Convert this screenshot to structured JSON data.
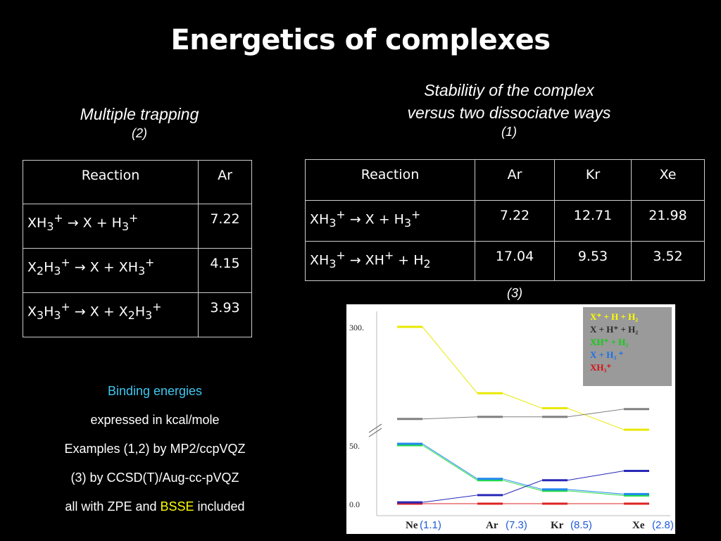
{
  "title": "Energetics  of complexes",
  "left_header": {
    "line1": "Multiple trapping",
    "line2": "(2)"
  },
  "right_header": {
    "line1": "Stabilitiy of  the complex",
    "line2": "versus two dissociatve ways",
    "line3": "(1)"
  },
  "table_left": {
    "headers": [
      "Reaction",
      "Ar"
    ],
    "rows": [
      {
        "reaction": "XH3+ → X + H3+",
        "ar": "7.22"
      },
      {
        "reaction": "X2H3+ → X + XH3+",
        "ar": "4.15"
      },
      {
        "reaction": "X3H3+ → X + X2H3+",
        "ar": "3.93"
      }
    ]
  },
  "table_right": {
    "headers": [
      "Reaction",
      "Ar",
      "Kr",
      "Xe"
    ],
    "rows": [
      {
        "reaction": "XH3+ → X + H3+",
        "ar": "7.22",
        "kr": "12.71",
        "xe": "21.98"
      },
      {
        "reaction": "XH3+ → XH+ + H2",
        "ar": "17.04",
        "kr": "9.53",
        "xe": "3.52"
      }
    ]
  },
  "notes": {
    "line1": "Binding energies",
    "line2": "expressed in kcal/mole",
    "line3": "Examples (1,2) by MP2/ccpVQZ",
    "line4": "(3) by CCSD(T)/Aug-cc-pVQZ",
    "line5_prefix": "all with ZPE and ",
    "line5_highlight": "BSSE",
    "line5_suffix": " included"
  },
  "chart_note": "(3)",
  "chart_data": {
    "type": "line",
    "categories": [
      "Ne",
      "Ar",
      "Kr",
      "Xe"
    ],
    "category_annotations": [
      "(1.1)",
      "(7.3)",
      "(8.5)",
      "(2.8)"
    ],
    "y_tick_labels": [
      "300.",
      "50.",
      "0.0"
    ],
    "axis_break": true,
    "legend_placement": "top-right",
    "series": [
      {
        "name": "X⁺ + H + H₂",
        "color": "#e8e800",
        "values": [
          300,
          145,
          110,
          60
        ]
      },
      {
        "name": "X + H⁺ + H₂",
        "color": "#808080",
        "values": [
          85,
          90,
          90,
          108
        ]
      },
      {
        "name": "XH⁺ + H₂",
        "color": "#22dd44",
        "values": [
          50,
          20,
          11,
          7
        ]
      },
      {
        "name": "X + H₃ ⁺",
        "color": "#2288ee",
        "values": [
          50,
          20,
          11,
          7
        ]
      },
      {
        "name": "XH₃⁺",
        "color": "#dd2222",
        "values": [
          0,
          0,
          0,
          0
        ]
      },
      {
        "name": "",
        "color": "#2828b8",
        "values": [
          1.1,
          7.3,
          20,
          28
        ]
      }
    ]
  }
}
